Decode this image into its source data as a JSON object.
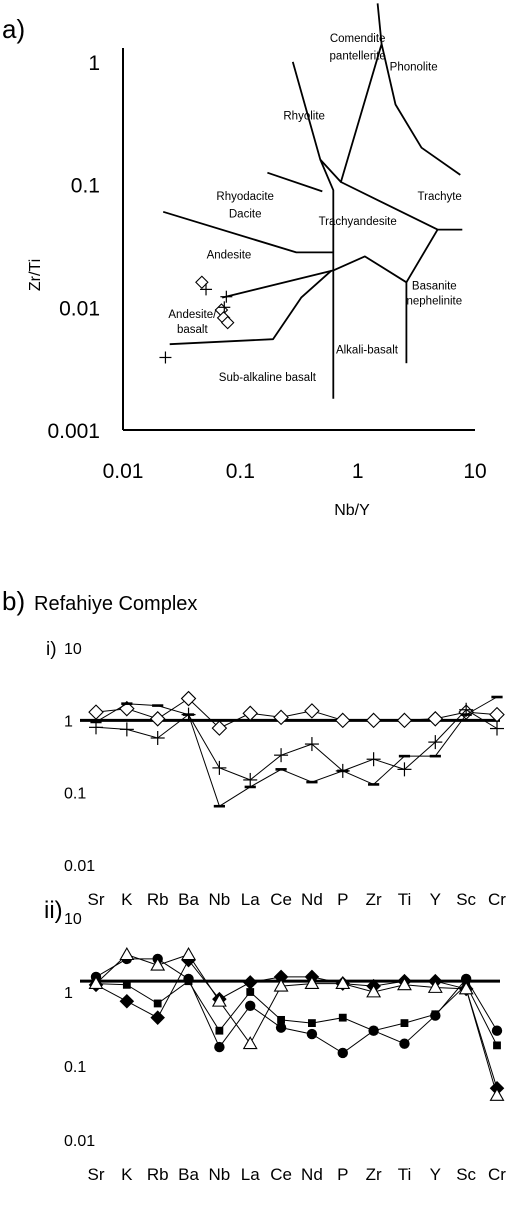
{
  "panel_a_label": "a)",
  "panel_b_label": "b)",
  "panel_b_title": "Refahiye Complex",
  "chart_data": [
    {
      "type": "scatter",
      "panel": "a)",
      "xlabel": "Nb/Y",
      "ylabel": "Zr/Ti",
      "xscale": "log",
      "yscale": "log",
      "xlim": [
        0.01,
        10
      ],
      "ylim": [
        0.001,
        2
      ],
      "x_ticks": [
        "0.01",
        "0.1",
        "1",
        "10"
      ],
      "y_ticks": [
        "0.001",
        "0.01",
        "0.1",
        "1"
      ],
      "grid": false,
      "field_labels": [
        {
          "text": "Comendite",
          "x": 1.0,
          "y": 1.45
        },
        {
          "text": "pantellerite",
          "x": 1.0,
          "y": 1.05
        },
        {
          "text": "Phonolite",
          "x": 3.0,
          "y": 0.85
        },
        {
          "text": "Rhyolite",
          "x": 0.35,
          "y": 0.34
        },
        {
          "text": "Trachyte",
          "x": 5.0,
          "y": 0.075
        },
        {
          "text": "Rhyodacite",
          "x": 0.11,
          "y": 0.075
        },
        {
          "text": "Dacite",
          "x": 0.11,
          "y": 0.054
        },
        {
          "text": "Trachyandesite",
          "x": 1.0,
          "y": 0.047
        },
        {
          "text": "Andesite",
          "x": 0.08,
          "y": 0.025
        },
        {
          "text": "Basanite",
          "x": 4.5,
          "y": 0.014
        },
        {
          "text": "nephelinite",
          "x": 4.5,
          "y": 0.0105
        },
        {
          "text": "Andesite/",
          "x": 0.039,
          "y": 0.0082
        },
        {
          "text": "basalt",
          "x": 0.039,
          "y": 0.0062
        },
        {
          "text": "Alkali-basalt",
          "x": 1.2,
          "y": 0.0042
        },
        {
          "text": "Sub-alkaline basalt",
          "x": 0.17,
          "y": 0.0025
        }
      ],
      "boundaries": [
        [
          [
            0.022,
            0.06
          ],
          [
            0.3,
            0.028
          ],
          [
            0.62,
            0.028
          ]
        ],
        [
          [
            0.28,
            1.0
          ],
          [
            0.48,
            0.16
          ],
          [
            0.62,
            0.09
          ],
          [
            0.62,
            0.0018
          ]
        ],
        [
          [
            0.17,
            0.125
          ],
          [
            0.5,
            0.088
          ]
        ],
        [
          [
            0.48,
            0.16
          ],
          [
            0.72,
            0.105
          ],
          [
            1.6,
            1.4
          ],
          [
            1.48,
            3.0
          ]
        ],
        [
          [
            0.72,
            0.105
          ],
          [
            4.8,
            0.043
          ],
          [
            7.8,
            0.043
          ]
        ],
        [
          [
            1.6,
            1.4
          ],
          [
            2.1,
            0.45
          ],
          [
            3.5,
            0.2
          ],
          [
            7.5,
            0.12
          ]
        ],
        [
          [
            0.07,
            0.012
          ],
          [
            0.62,
            0.02
          ],
          [
            1.15,
            0.026
          ],
          [
            2.6,
            0.016
          ],
          [
            4.8,
            0.043
          ]
        ],
        [
          [
            2.6,
            0.016
          ],
          [
            2.6,
            0.0035
          ]
        ],
        [
          [
            0.025,
            0.005
          ],
          [
            0.19,
            0.0055
          ],
          [
            0.33,
            0.012
          ],
          [
            0.6,
            0.02
          ]
        ]
      ],
      "series": [
        {
          "marker": "open-diamond",
          "points": [
            [
              0.047,
              0.016
            ],
            [
              0.069,
              0.0095
            ],
            [
              0.072,
              0.0082
            ],
            [
              0.078,
              0.0075
            ]
          ]
        },
        {
          "marker": "plus",
          "points": [
            [
              0.023,
              0.0039
            ],
            [
              0.051,
              0.014
            ],
            [
              0.076,
              0.0122
            ],
            [
              0.073,
              0.01
            ]
          ]
        }
      ]
    },
    {
      "type": "line",
      "panel": "i)",
      "yscale": "log",
      "ylim": [
        0.01,
        10
      ],
      "y_ticks": [
        "0.01",
        "0.1",
        "1",
        "10"
      ],
      "categories": [
        "Sr",
        "K",
        "Rb",
        "Ba",
        "Nb",
        "La",
        "Ce",
        "Nd",
        "P",
        "Zr",
        "Ti",
        "Y",
        "Sc",
        "Cr"
      ],
      "reference_line": 1,
      "series": [
        {
          "marker": "open-diamond",
          "values": [
            1.3,
            1.45,
            1.05,
            2.0,
            0.78,
            1.25,
            1.1,
            1.35,
            1.0,
            1.0,
            1.0,
            1.05,
            1.3,
            1.2
          ]
        },
        {
          "marker": "plus",
          "values": [
            0.8,
            0.75,
            0.57,
            1.2,
            0.22,
            0.15,
            0.33,
            0.47,
            0.2,
            0.29,
            0.21,
            0.5,
            1.4,
            0.77
          ]
        },
        {
          "marker": "dash",
          "values": [
            0.95,
            1.7,
            1.6,
            1.2,
            0.065,
            0.12,
            0.21,
            0.14,
            0.2,
            0.13,
            0.32,
            0.32,
            1.2,
            2.1
          ]
        }
      ]
    },
    {
      "type": "line",
      "panel": "ii)",
      "yscale": "log",
      "ylim": [
        0.01,
        10
      ],
      "y_ticks": [
        "0.01",
        "0.1",
        "1",
        "10"
      ],
      "categories": [
        "Sr",
        "K",
        "Rb",
        "Ba",
        "Nb",
        "La",
        "Ce",
        "Nd",
        "P",
        "Zr",
        "Ti",
        "Y",
        "Sc",
        "Cr"
      ],
      "reference_line": 1.4,
      "series": [
        {
          "marker": "filled-circle",
          "values": [
            1.6,
            2.8,
            2.8,
            1.5,
            0.18,
            0.65,
            0.33,
            0.27,
            0.15,
            0.3,
            0.2,
            0.48,
            1.5,
            0.3
          ]
        },
        {
          "marker": "filled-square",
          "values": [
            1.3,
            1.25,
            0.7,
            1.4,
            0.3,
            1.0,
            0.42,
            0.38,
            0.45,
            0.3,
            0.38,
            0.5,
            1.25,
            0.19
          ]
        },
        {
          "marker": "filled-diamond",
          "values": [
            1.25,
            0.75,
            0.45,
            2.7,
            0.8,
            1.35,
            1.6,
            1.6,
            1.3,
            1.2,
            1.4,
            1.4,
            1.1,
            0.05
          ]
        },
        {
          "marker": "open-triangle",
          "values": [
            1.3,
            3.2,
            2.3,
            3.2,
            0.75,
            0.2,
            1.2,
            1.3,
            1.3,
            1.0,
            1.25,
            1.15,
            1.1,
            0.04
          ]
        }
      ]
    }
  ]
}
